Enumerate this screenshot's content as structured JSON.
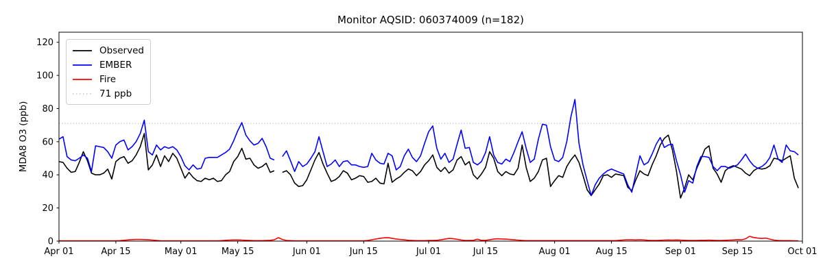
{
  "title": "Monitor AQSID: 060374009 (n=182)",
  "legend": {
    "items": [
      {
        "label": "Observed",
        "color": "#000000",
        "style": "solid"
      },
      {
        "label": "EMBER",
        "color": "#0000ff",
        "style": "solid"
      },
      {
        "label": "Fire",
        "color": "#ff0000",
        "style": "solid"
      },
      {
        "label": "71 ppb",
        "color": "#c4c4c4",
        "style": "dotted"
      }
    ]
  },
  "chart_data": {
    "type": "line",
    "title": "Monitor AQSID: 060374009 (n=182)",
    "xlabel": "",
    "ylabel": "MDA8 O3 (ppb)",
    "x_unit": "days since Apr 01",
    "xlim_days": [
      0,
      183
    ],
    "ylim": [
      0,
      126
    ],
    "grid": false,
    "legend_position": "upper left",
    "y_ticks": [
      0,
      20,
      40,
      60,
      80,
      100,
      120
    ],
    "x_ticks": [
      {
        "day": 0,
        "label": "Apr 01"
      },
      {
        "day": 14,
        "label": "Apr 15"
      },
      {
        "day": 30,
        "label": "May 01"
      },
      {
        "day": 44,
        "label": "May 15"
      },
      {
        "day": 61,
        "label": "Jun 01"
      },
      {
        "day": 75,
        "label": "Jun 15"
      },
      {
        "day": 91,
        "label": "Jul 01"
      },
      {
        "day": 105,
        "label": "Jul 15"
      },
      {
        "day": 122,
        "label": "Aug 01"
      },
      {
        "day": 136,
        "label": "Aug 15"
      },
      {
        "day": 153,
        "label": "Sep 01"
      },
      {
        "day": 167,
        "label": "Sep 15"
      },
      {
        "day": 183,
        "label": "Oct 01"
      }
    ],
    "threshold": {
      "label": "71 ppb",
      "value": 71,
      "color": "#c4c4c4",
      "style": "dotted"
    },
    "missing_day": {
      "index": 54,
      "note": "gap in Observed and EMBER around May 25"
    },
    "series": [
      {
        "name": "Observed",
        "color": "#000000",
        "values": [
          48,
          47.5,
          44,
          41.5,
          42,
          47.5,
          54,
          48.5,
          41,
          40,
          40,
          41,
          43.5,
          37.5,
          48,
          50,
          51,
          47,
          48.5,
          52,
          57,
          65,
          43,
          46,
          52,
          45,
          51.5,
          48,
          53,
          50,
          44,
          38,
          41.5,
          38.5,
          36.5,
          36,
          38,
          37,
          38,
          36,
          36.5,
          40,
          42,
          48,
          51,
          56,
          49.5,
          50,
          46,
          44,
          45,
          47,
          41.5,
          42.5,
          null,
          41.5,
          42.5,
          40,
          35,
          33,
          33.5,
          37,
          43,
          49,
          53.5,
          46.5,
          41,
          36,
          37,
          39,
          42.5,
          41,
          37,
          38,
          39.5,
          39,
          35.5,
          36,
          38,
          35,
          34.5,
          47,
          35.5,
          37.5,
          39,
          41.5,
          43.5,
          42.5,
          39.5,
          42,
          46,
          48.5,
          52,
          44.5,
          42,
          44.5,
          41,
          43,
          49,
          51,
          46,
          48,
          40,
          37.5,
          40.5,
          44.5,
          54,
          50,
          42,
          39.5,
          42,
          40.5,
          40,
          44,
          58,
          44.5,
          36,
          38,
          42,
          49,
          50,
          33,
          36.5,
          39.5,
          38.5,
          45,
          49,
          52,
          47.5,
          39.5,
          31,
          27.5,
          31,
          34.5,
          39.5,
          40,
          38.5,
          40.5,
          40,
          39.5,
          32.5,
          30.5,
          37,
          42.5,
          40.5,
          39.5,
          46,
          51.5,
          58,
          62,
          64,
          55,
          42,
          26,
          32,
          40,
          37,
          44,
          49.5,
          55.5,
          57.5,
          44,
          40.5,
          35.5,
          42.5,
          44.5,
          45.5,
          44.5,
          43.5,
          41,
          39.5,
          42.5,
          44,
          43.5,
          44,
          45.5,
          50,
          49.5,
          48.5,
          50,
          51.5,
          38,
          32
        ]
      },
      {
        "name": "EMBER",
        "color": "#0000ff",
        "values": [
          61.5,
          63,
          51,
          49,
          48.5,
          50,
          52,
          50,
          42,
          57.5,
          57,
          56.5,
          54,
          50,
          58,
          60,
          61,
          55,
          57,
          60,
          65,
          73,
          54,
          52,
          58,
          55,
          57,
          56,
          57,
          55,
          51,
          45.5,
          43,
          46,
          43.5,
          44,
          50,
          50.5,
          50.5,
          50.5,
          52,
          53.5,
          55.5,
          60.5,
          66.5,
          71.5,
          64,
          60.5,
          58,
          59,
          62,
          57,
          50,
          49,
          null,
          51,
          54.5,
          48.5,
          42,
          48,
          45,
          46.5,
          50,
          54,
          63,
          54,
          45,
          46.5,
          49,
          45,
          48,
          48.5,
          46,
          46,
          45,
          44.5,
          45,
          53,
          49,
          47,
          46.5,
          53,
          51.5,
          43,
          45,
          51.5,
          55.5,
          50.5,
          48,
          51.5,
          59,
          66,
          69.5,
          56,
          49.5,
          53,
          47.5,
          49.5,
          58.5,
          67,
          56,
          56.5,
          47.5,
          46,
          48,
          53.5,
          63,
          52,
          47.5,
          46.5,
          49.5,
          48,
          53.5,
          60,
          66,
          56,
          47.5,
          49.5,
          61.5,
          70.5,
          70,
          57,
          49,
          48,
          50.5,
          60,
          75,
          85.5,
          59,
          46,
          36.5,
          27.5,
          34,
          38,
          40.5,
          42.5,
          43.5,
          42.5,
          41.5,
          40.5,
          34,
          29.5,
          40.5,
          51.5,
          46,
          47.5,
          52.5,
          58.5,
          62.5,
          56.5,
          58,
          58.5,
          48.5,
          40,
          29.5,
          36.5,
          35,
          45,
          51,
          51,
          50.5,
          45,
          42.5,
          45,
          45,
          44,
          45,
          46,
          49,
          52.5,
          48.5,
          45.5,
          44,
          45,
          47,
          50.5,
          58,
          49.5,
          47.5,
          58,
          54.5,
          54,
          52
        ]
      },
      {
        "name": "Fire",
        "color": "#ff0000",
        "values": [
          0.2,
          0.2,
          0.2,
          0.2,
          0.2,
          0.2,
          0.2,
          0.2,
          0.2,
          0.2,
          0.2,
          0.2,
          0.2,
          0.2,
          0.2,
          0.3,
          0.5,
          0.7,
          0.9,
          1.0,
          1.0,
          0.9,
          0.8,
          0.6,
          0.4,
          0.2,
          0.2,
          0.2,
          0.2,
          0.2,
          0.2,
          0.2,
          0.2,
          0.2,
          0.2,
          0.2,
          0.2,
          0.2,
          0.2,
          0.2,
          0.3,
          0.5,
          0.6,
          0.7,
          0.7,
          0.6,
          0.5,
          0.4,
          0.3,
          0.3,
          0.3,
          0.4,
          0.5,
          0.8,
          2.1,
          1.0,
          0.4,
          0.3,
          0.2,
          0.2,
          0.2,
          0.2,
          0.2,
          0.2,
          0.2,
          0.2,
          0.2,
          0.2,
          0.2,
          0.2,
          0.2,
          0.2,
          0.2,
          0.2,
          0.2,
          0.2,
          0.4,
          0.8,
          1.3,
          1.7,
          2.0,
          2.1,
          1.7,
          1.3,
          1.0,
          0.8,
          0.5,
          0.4,
          0.3,
          0.3,
          0.3,
          0.4,
          0.4,
          0.5,
          0.8,
          1.2,
          1.6,
          1.5,
          1.1,
          0.7,
          0.4,
          0.4,
          0.5,
          1.1,
          0.5,
          0.5,
          0.8,
          1.2,
          1.4,
          1.3,
          1.2,
          1.0,
          0.8,
          0.6,
          0.4,
          0.3,
          0.3,
          0.3,
          0.3,
          0.3,
          0.3,
          0.3,
          0.3,
          0.3,
          0.3,
          0.3,
          0.3,
          0.3,
          0.3,
          0.3,
          0.3,
          0.3,
          0.3,
          0.3,
          0.3,
          0.3,
          0.3,
          0.3,
          0.5,
          0.7,
          0.8,
          0.8,
          0.7,
          0.8,
          0.7,
          0.5,
          0.4,
          0.4,
          0.5,
          0.6,
          0.7,
          0.6,
          0.7,
          0.6,
          0.5,
          0.4,
          0.4,
          0.4,
          0.5,
          0.5,
          0.6,
          0.5,
          0.4,
          0.4,
          0.5,
          0.6,
          0.7,
          0.9,
          0.8,
          1.4,
          2.9,
          2.2,
          1.8,
          1.6,
          1.8,
          1.2,
          0.6,
          0.4,
          0.3,
          0.3,
          0.3,
          0.2,
          0.2
        ]
      }
    ]
  }
}
